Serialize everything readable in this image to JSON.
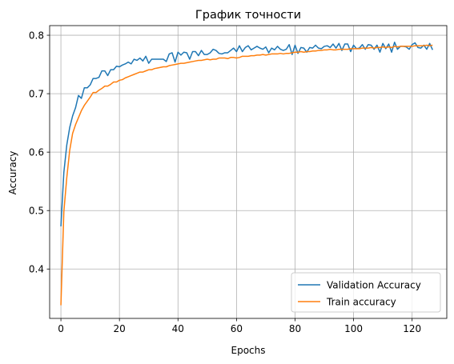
{
  "chart_data": {
    "type": "line",
    "title": "График точности",
    "xlabel": "Epochs",
    "ylabel": "Accuracy",
    "xlim": [
      -3.85,
      131.85
    ],
    "ylim": [
      0.3155,
      0.8165
    ],
    "xticks": [
      0,
      20,
      40,
      60,
      80,
      100,
      120
    ],
    "yticks": [
      0.4,
      0.5,
      0.6,
      0.7,
      0.8
    ],
    "xtick_labels": [
      "0",
      "20",
      "40",
      "60",
      "80",
      "100",
      "120"
    ],
    "ytick_labels": [
      "0.4",
      "0.5",
      "0.6",
      "0.7",
      "0.8"
    ],
    "grid": true,
    "legend_position": "lower-right",
    "series": [
      {
        "name": "Validation Accuracy",
        "color": "#1f77b4",
        "x": [
          0,
          1,
          2,
          3,
          4,
          5,
          6,
          7,
          8,
          9,
          10,
          11,
          12,
          13,
          14,
          15,
          16,
          17,
          18,
          19,
          20,
          21,
          22,
          23,
          24,
          25,
          26,
          27,
          28,
          29,
          30,
          31,
          32,
          33,
          34,
          35,
          36,
          37,
          38,
          39,
          40,
          41,
          42,
          43,
          44,
          45,
          46,
          47,
          48,
          49,
          50,
          51,
          52,
          53,
          54,
          55,
          56,
          57,
          58,
          59,
          60,
          61,
          62,
          63,
          64,
          65,
          66,
          67,
          68,
          69,
          70,
          71,
          72,
          73,
          74,
          75,
          76,
          77,
          78,
          79,
          80,
          81,
          82,
          83,
          84,
          85,
          86,
          87,
          88,
          89,
          90,
          91,
          92,
          93,
          94,
          95,
          96,
          97,
          98,
          99,
          100,
          101,
          102,
          103,
          104,
          105,
          106,
          107,
          108,
          109,
          110,
          111,
          112,
          113,
          114,
          115,
          116,
          117,
          118,
          119,
          120,
          121,
          122,
          123,
          124,
          125,
          126,
          127
        ],
        "y": [
          0.473,
          0.565,
          0.612,
          0.642,
          0.662,
          0.676,
          0.697,
          0.692,
          0.71,
          0.71,
          0.715,
          0.726,
          0.726,
          0.728,
          0.739,
          0.739,
          0.731,
          0.741,
          0.741,
          0.747,
          0.746,
          0.749,
          0.751,
          0.754,
          0.751,
          0.759,
          0.757,
          0.761,
          0.756,
          0.764,
          0.752,
          0.759,
          0.759,
          0.759,
          0.759,
          0.759,
          0.755,
          0.768,
          0.77,
          0.754,
          0.771,
          0.766,
          0.771,
          0.77,
          0.759,
          0.772,
          0.772,
          0.765,
          0.774,
          0.767,
          0.767,
          0.77,
          0.776,
          0.774,
          0.769,
          0.768,
          0.77,
          0.77,
          0.774,
          0.778,
          0.772,
          0.782,
          0.772,
          0.779,
          0.782,
          0.775,
          0.778,
          0.781,
          0.778,
          0.776,
          0.78,
          0.77,
          0.778,
          0.775,
          0.781,
          0.776,
          0.774,
          0.776,
          0.784,
          0.767,
          0.783,
          0.769,
          0.779,
          0.778,
          0.771,
          0.779,
          0.778,
          0.783,
          0.778,
          0.777,
          0.781,
          0.782,
          0.779,
          0.785,
          0.778,
          0.786,
          0.774,
          0.785,
          0.785,
          0.772,
          0.783,
          0.777,
          0.778,
          0.784,
          0.776,
          0.784,
          0.783,
          0.776,
          0.783,
          0.771,
          0.786,
          0.777,
          0.785,
          0.771,
          0.788,
          0.776,
          0.781,
          0.781,
          0.78,
          0.776,
          0.784,
          0.787,
          0.779,
          0.778,
          0.783,
          0.776,
          0.786,
          0.775
        ]
      },
      {
        "name": "Train accuracy",
        "color": "#ff7f0e",
        "x": [
          0,
          1,
          2,
          3,
          4,
          5,
          6,
          7,
          8,
          9,
          10,
          11,
          12,
          13,
          14,
          15,
          16,
          17,
          18,
          19,
          20,
          21,
          22,
          23,
          24,
          25,
          26,
          27,
          28,
          29,
          30,
          31,
          32,
          33,
          34,
          35,
          36,
          37,
          38,
          39,
          40,
          41,
          42,
          43,
          44,
          45,
          46,
          47,
          48,
          49,
          50,
          51,
          52,
          53,
          54,
          55,
          56,
          57,
          58,
          59,
          60,
          61,
          62,
          63,
          64,
          65,
          66,
          67,
          68,
          69,
          70,
          71,
          72,
          73,
          74,
          75,
          76,
          77,
          78,
          79,
          80,
          81,
          82,
          83,
          84,
          85,
          86,
          87,
          88,
          89,
          90,
          91,
          92,
          93,
          94,
          95,
          96,
          97,
          98,
          99,
          100,
          101,
          102,
          103,
          104,
          105,
          106,
          107,
          108,
          109,
          110,
          111,
          112,
          113,
          114,
          115,
          116,
          117,
          118,
          119,
          120,
          121,
          122,
          123,
          124,
          125,
          126,
          127
        ],
        "y": [
          0.338,
          0.498,
          0.556,
          0.603,
          0.632,
          0.647,
          0.659,
          0.671,
          0.68,
          0.687,
          0.694,
          0.702,
          0.702,
          0.706,
          0.709,
          0.713,
          0.713,
          0.716,
          0.72,
          0.72,
          0.723,
          0.724,
          0.727,
          0.729,
          0.731,
          0.733,
          0.735,
          0.737,
          0.737,
          0.739,
          0.741,
          0.741,
          0.743,
          0.744,
          0.745,
          0.746,
          0.746,
          0.748,
          0.749,
          0.75,
          0.751,
          0.752,
          0.752,
          0.753,
          0.754,
          0.755,
          0.756,
          0.757,
          0.757,
          0.758,
          0.759,
          0.758,
          0.759,
          0.759,
          0.761,
          0.761,
          0.761,
          0.76,
          0.762,
          0.762,
          0.761,
          0.762,
          0.764,
          0.764,
          0.764,
          0.765,
          0.765,
          0.766,
          0.766,
          0.767,
          0.766,
          0.767,
          0.768,
          0.768,
          0.768,
          0.769,
          0.768,
          0.769,
          0.769,
          0.77,
          0.771,
          0.771,
          0.772,
          0.771,
          0.772,
          0.772,
          0.773,
          0.773,
          0.774,
          0.774,
          0.775,
          0.775,
          0.776,
          0.775,
          0.775,
          0.776,
          0.776,
          0.776,
          0.776,
          0.777,
          0.777,
          0.777,
          0.777,
          0.778,
          0.778,
          0.778,
          0.779,
          0.778,
          0.779,
          0.779,
          0.78,
          0.779,
          0.78,
          0.779,
          0.781,
          0.78,
          0.781,
          0.781,
          0.781,
          0.781,
          0.781,
          0.782,
          0.782,
          0.782,
          0.782,
          0.783,
          0.782,
          0.783
        ]
      }
    ]
  }
}
